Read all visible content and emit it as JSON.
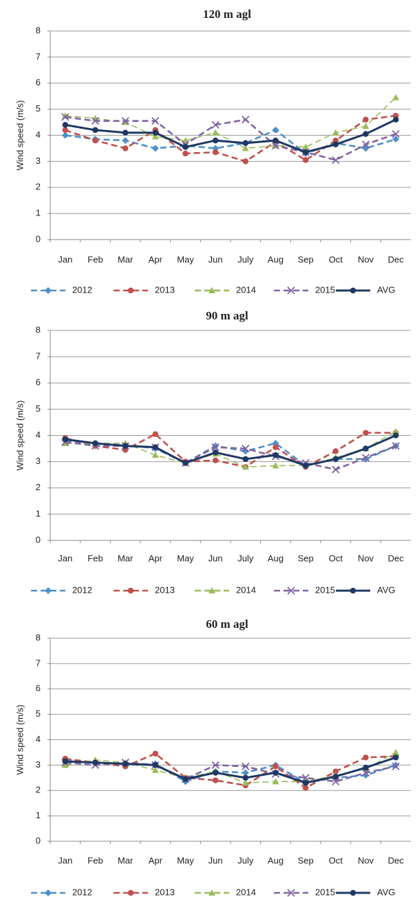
{
  "chart_data": [
    {
      "type": "line",
      "title": "120 m agl",
      "ylabel": "Wind speed (m/s)",
      "categories": [
        "Jan",
        "Feb",
        "Mar",
        "Apr",
        "May",
        "Jun",
        "July",
        "Aug",
        "Sep",
        "Oct",
        "Nov",
        "Dec"
      ],
      "ylim": [
        0,
        8
      ],
      "yticks": [
        0,
        1,
        2,
        3,
        4,
        5,
        6,
        7,
        8
      ],
      "grid": true,
      "legend": "bottom",
      "series": [
        {
          "name": "2012",
          "color": "#4f8fc9",
          "marker": "diamond",
          "dashed": true,
          "values": [
            4.0,
            3.85,
            3.8,
            3.5,
            3.6,
            3.5,
            3.7,
            4.2,
            3.3,
            3.7,
            3.5,
            3.85
          ]
        },
        {
          "name": "2013",
          "color": "#c0504d",
          "marker": "circle",
          "dashed": true,
          "values": [
            4.2,
            3.8,
            3.5,
            4.2,
            3.3,
            3.35,
            3.0,
            3.75,
            3.05,
            3.8,
            4.6,
            4.75
          ]
        },
        {
          "name": "2014",
          "color": "#9bbb59",
          "marker": "triangle",
          "dashed": true,
          "values": [
            4.75,
            4.65,
            4.5,
            3.95,
            3.8,
            4.1,
            3.5,
            3.6,
            3.55,
            4.1,
            4.35,
            5.45
          ]
        },
        {
          "name": "2015",
          "color": "#8064a2",
          "marker": "x",
          "dashed": true,
          "values": [
            4.7,
            4.55,
            4.55,
            4.55,
            3.65,
            4.4,
            4.6,
            3.6,
            3.35,
            3.05,
            3.65,
            4.05
          ]
        },
        {
          "name": "AVG",
          "color": "#1f3864",
          "marker": "circle",
          "dashed": false,
          "values": [
            4.4,
            4.2,
            4.1,
            4.1,
            3.55,
            3.8,
            3.7,
            3.8,
            3.35,
            3.65,
            4.05,
            4.6
          ]
        }
      ]
    },
    {
      "type": "line",
      "title": "90 m agl",
      "ylabel": "Wind speed (m/s)",
      "categories": [
        "Jan",
        "Feb",
        "Mar",
        "Apr",
        "May",
        "Jun",
        "July",
        "Aug",
        "Sep",
        "Oct",
        "Nov",
        "Dec"
      ],
      "ylim": [
        0,
        8
      ],
      "yticks": [
        0,
        1,
        2,
        3,
        4,
        5,
        6,
        7,
        8
      ],
      "grid": true,
      "legend": "bottom",
      "series": [
        {
          "name": "2012",
          "color": "#4f8fc9",
          "marker": "diamond",
          "dashed": true,
          "values": [
            3.8,
            3.7,
            3.65,
            3.5,
            2.95,
            3.6,
            3.4,
            3.7,
            2.85,
            3.1,
            3.1,
            3.6
          ]
        },
        {
          "name": "2013",
          "color": "#c0504d",
          "marker": "circle",
          "dashed": true,
          "values": [
            3.9,
            3.6,
            3.45,
            4.05,
            3.0,
            3.05,
            2.8,
            3.55,
            2.8,
            3.4,
            4.1,
            4.1
          ]
        },
        {
          "name": "2014",
          "color": "#9bbb59",
          "marker": "triangle",
          "dashed": true,
          "values": [
            3.7,
            3.7,
            3.7,
            3.25,
            2.95,
            3.3,
            2.8,
            2.85,
            2.85,
            3.15,
            3.5,
            4.15
          ]
        },
        {
          "name": "2015",
          "color": "#8064a2",
          "marker": "x",
          "dashed": true,
          "values": [
            3.75,
            3.6,
            3.6,
            3.55,
            2.95,
            3.55,
            3.5,
            3.2,
            2.95,
            2.7,
            3.15,
            3.6
          ]
        },
        {
          "name": "AVG",
          "color": "#1f3864",
          "marker": "circle",
          "dashed": false,
          "values": [
            3.85,
            3.7,
            3.6,
            3.55,
            2.95,
            3.35,
            3.1,
            3.25,
            2.85,
            3.1,
            3.5,
            4.0
          ]
        }
      ]
    },
    {
      "type": "line",
      "title": "60 m agl",
      "ylabel": "Wind speed (m/s)",
      "categories": [
        "Jan",
        "Feb",
        "Mar",
        "Apr",
        "May",
        "Jun",
        "July",
        "Aug",
        "Sep",
        "Oct",
        "Nov",
        "Dec"
      ],
      "ylim": [
        0,
        8
      ],
      "yticks": [
        0,
        1,
        2,
        3,
        4,
        5,
        6,
        7,
        8
      ],
      "grid": true,
      "legend": "bottom",
      "series": [
        {
          "name": "2012",
          "color": "#4f8fc9",
          "marker": "diamond",
          "dashed": true,
          "values": [
            3.15,
            3.1,
            3.0,
            3.05,
            2.35,
            2.75,
            2.7,
            3.0,
            2.3,
            2.5,
            2.6,
            3.0
          ]
        },
        {
          "name": "2013",
          "color": "#c0504d",
          "marker": "circle",
          "dashed": true,
          "values": [
            3.25,
            3.1,
            2.95,
            3.45,
            2.5,
            2.4,
            2.2,
            2.95,
            2.1,
            2.75,
            3.3,
            3.35
          ]
        },
        {
          "name": "2014",
          "color": "#9bbb59",
          "marker": "triangle",
          "dashed": true,
          "values": [
            3.0,
            3.2,
            3.1,
            2.8,
            2.5,
            2.75,
            2.3,
            2.35,
            2.35,
            2.6,
            2.85,
            3.5
          ]
        },
        {
          "name": "2015",
          "color": "#8064a2",
          "marker": "x",
          "dashed": true,
          "values": [
            3.1,
            3.0,
            3.1,
            3.0,
            2.45,
            3.0,
            2.95,
            2.65,
            2.5,
            2.35,
            2.7,
            2.95
          ]
        },
        {
          "name": "AVG",
          "color": "#1f3864",
          "marker": "circle",
          "dashed": false,
          "values": [
            3.15,
            3.1,
            3.05,
            3.0,
            2.45,
            2.7,
            2.5,
            2.7,
            2.3,
            2.55,
            2.9,
            3.3
          ]
        }
      ]
    }
  ]
}
